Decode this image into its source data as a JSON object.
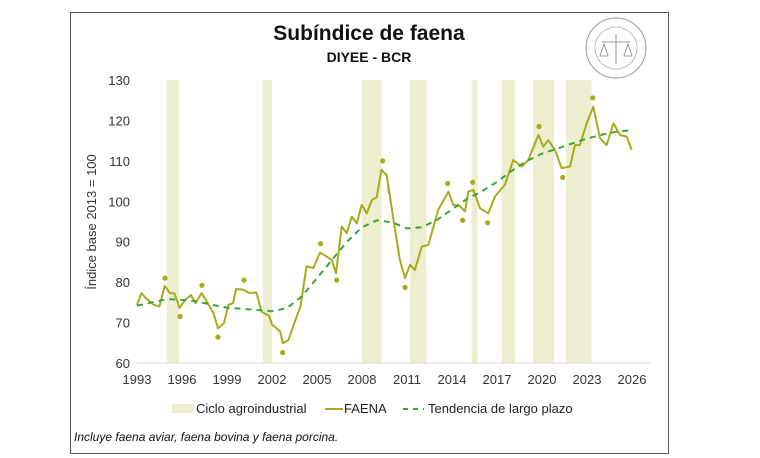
{
  "chart_data": {
    "type": "line",
    "title": "Subíndice de faena",
    "subtitle": "DIYEE - BCR",
    "ylabel": "Índice base 2013 = 100",
    "xlabel": "",
    "ylim": [
      60,
      130
    ],
    "xlim": [
      1993,
      2026
    ],
    "yticks": [
      "60",
      "70",
      "80",
      "90",
      "100",
      "110",
      "120",
      "130"
    ],
    "xticks": [
      "1993",
      "1996",
      "1999",
      "2002",
      "2005",
      "2008",
      "2011",
      "2014",
      "2017",
      "2020",
      "2023",
      "2026"
    ],
    "grid": false,
    "legend_position": "bottom",
    "legend": [
      "Ciclo agroindustrial",
      "FAENA",
      "Tendencia de largo plazo"
    ],
    "colors": {
      "band": "#edeed0",
      "faena": "#a7ab1c",
      "trend": "#3aa636"
    },
    "bands": [
      [
        1995.0,
        1995.8
      ],
      [
        2001.4,
        2002.0
      ],
      [
        2008.0,
        2009.3
      ],
      [
        2011.2,
        2012.3
      ],
      [
        2015.3,
        2015.7
      ],
      [
        2017.3,
        2018.2
      ],
      [
        2019.4,
        2020.8
      ],
      [
        2021.6,
        2023.3
      ]
    ],
    "series": [
      {
        "name": "FAENA",
        "style": "solid",
        "points": [
          [
            1993.0,
            74.4
          ],
          [
            1993.3,
            77.3
          ],
          [
            1993.6,
            76
          ],
          [
            1994.1,
            74.4
          ],
          [
            1994.5,
            74.0
          ],
          [
            1994.85,
            79.1
          ],
          [
            1995.2,
            77.3
          ],
          [
            1995.5,
            77.2
          ],
          [
            1995.85,
            73.6
          ],
          [
            1996.2,
            75.6
          ],
          [
            1996.6,
            76.8
          ],
          [
            1996.9,
            74.8
          ],
          [
            1997.3,
            77.3
          ],
          [
            1997.6,
            75.5
          ],
          [
            1998.1,
            72.3
          ],
          [
            1998.4,
            68.6
          ],
          [
            1998.8,
            69.9
          ],
          [
            1999.1,
            74.4
          ],
          [
            1999.4,
            74.8
          ],
          [
            1999.6,
            78.3
          ],
          [
            2000.1,
            78.1
          ],
          [
            2000.5,
            77.3
          ],
          [
            2000.96,
            77.5
          ],
          [
            2001.3,
            72.7
          ],
          [
            2001.8,
            71.7
          ],
          [
            2002.0,
            69.5
          ],
          [
            2002.55,
            67.8
          ],
          [
            2002.72,
            64.9
          ],
          [
            2003.1,
            65.7
          ],
          [
            2003.4,
            69
          ],
          [
            2003.9,
            74
          ],
          [
            2004.3,
            83.9
          ],
          [
            2004.75,
            83.5
          ],
          [
            2005.2,
            87.3
          ],
          [
            2005.65,
            86.3
          ],
          [
            2005.98,
            85.5
          ],
          [
            2006.27,
            82.2
          ],
          [
            2006.65,
            93.8
          ],
          [
            2006.98,
            92.1
          ],
          [
            2007.32,
            96.2
          ],
          [
            2007.65,
            94.5
          ],
          [
            2007.98,
            99.1
          ],
          [
            2008.32,
            97
          ],
          [
            2008.65,
            100.3
          ],
          [
            2008.98,
            101
          ],
          [
            2009.3,
            107.8
          ],
          [
            2009.65,
            106.5
          ],
          [
            2009.8,
            102
          ],
          [
            2009.75,
            104
          ],
          [
            2010.1,
            95.4
          ],
          [
            2010.53,
            85.5
          ],
          [
            2010.87,
            81
          ],
          [
            2011.2,
            84.3
          ],
          [
            2011.53,
            83
          ],
          [
            2011.98,
            88.8
          ],
          [
            2012.42,
            89.2
          ],
          [
            2013.09,
            97.9
          ],
          [
            2013.76,
            102.4
          ],
          [
            2014.09,
            99.1
          ],
          [
            2014.53,
            98.8
          ],
          [
            2014.87,
            97.5
          ],
          [
            2015.09,
            102.4
          ],
          [
            2015.42,
            102.8
          ],
          [
            2015.87,
            98.3
          ],
          [
            2016.42,
            97
          ],
          [
            2016.87,
            101.2
          ],
          [
            2017.53,
            104.1
          ],
          [
            2018.09,
            110.2
          ],
          [
            2018.64,
            108.6
          ],
          [
            2019.09,
            110.2
          ],
          [
            2019.76,
            116.4
          ],
          [
            2020.09,
            113.5
          ],
          [
            2020.42,
            115.1
          ],
          [
            2020.87,
            112.7
          ],
          [
            2021.31,
            108.2
          ],
          [
            2021.87,
            108.6
          ],
          [
            2022.2,
            113.9
          ],
          [
            2022.53,
            113.9
          ],
          [
            2022.98,
            119.3
          ],
          [
            2023.42,
            123.4
          ],
          [
            2023.87,
            115.6
          ],
          [
            2024.31,
            113.9
          ],
          [
            2024.76,
            119.3
          ],
          [
            2025.2,
            116.4
          ],
          [
            2025.64,
            116
          ],
          [
            2025.98,
            112.7
          ]
        ]
      },
      {
        "name": "FAENA",
        "style": "markers",
        "points": [
          [
            1994.87,
            81.0
          ],
          [
            1995.87,
            71.5
          ],
          [
            1997.33,
            79.2
          ],
          [
            1998.4,
            66.4
          ],
          [
            2000.13,
            80.5
          ],
          [
            2002.71,
            62.6
          ],
          [
            2005.24,
            89.5
          ],
          [
            2006.31,
            80.5
          ],
          [
            2009.38,
            110.0
          ],
          [
            2010.87,
            78.7
          ],
          [
            2013.71,
            104.4
          ],
          [
            2014.71,
            95.3
          ],
          [
            2015.38,
            104.7
          ],
          [
            2016.38,
            94.7
          ],
          [
            2019.8,
            118.5
          ],
          [
            2021.38,
            105.9
          ],
          [
            2023.38,
            125.6
          ]
        ]
      },
      {
        "name": "Tendencia de largo plazo",
        "style": "dashed",
        "points": [
          [
            1993,
            74.2
          ],
          [
            1994,
            75
          ],
          [
            1995,
            75.8
          ],
          [
            1996,
            75.6
          ],
          [
            1997,
            75.2
          ],
          [
            1998,
            74.4
          ],
          [
            1999,
            73.7
          ],
          [
            2000,
            73.4
          ],
          [
            2001,
            73.1
          ],
          [
            2002,
            72.8
          ],
          [
            2003,
            73.6
          ],
          [
            2004,
            76.5
          ],
          [
            2005,
            81
          ],
          [
            2006,
            85.5
          ],
          [
            2007,
            90
          ],
          [
            2008,
            93.6
          ],
          [
            2009,
            95.3
          ],
          [
            2010,
            94.8
          ],
          [
            2011,
            93.3
          ],
          [
            2012,
            93.6
          ],
          [
            2013,
            95.4
          ],
          [
            2014,
            98
          ],
          [
            2015,
            100.6
          ],
          [
            2016,
            102.5
          ],
          [
            2017,
            104.8
          ],
          [
            2018,
            107.6
          ],
          [
            2019,
            110
          ],
          [
            2020,
            111.8
          ],
          [
            2021,
            113
          ],
          [
            2022,
            114.3
          ],
          [
            2023,
            115.5
          ],
          [
            2024,
            116.5
          ],
          [
            2025,
            117.2
          ],
          [
            2026,
            117.6
          ]
        ]
      }
    ],
    "footnote": "Incluye faena aviar, faena bovina y faena porcina.",
    "logo_text": "BOLSA DE COMERCIO DE ROSARIO"
  }
}
